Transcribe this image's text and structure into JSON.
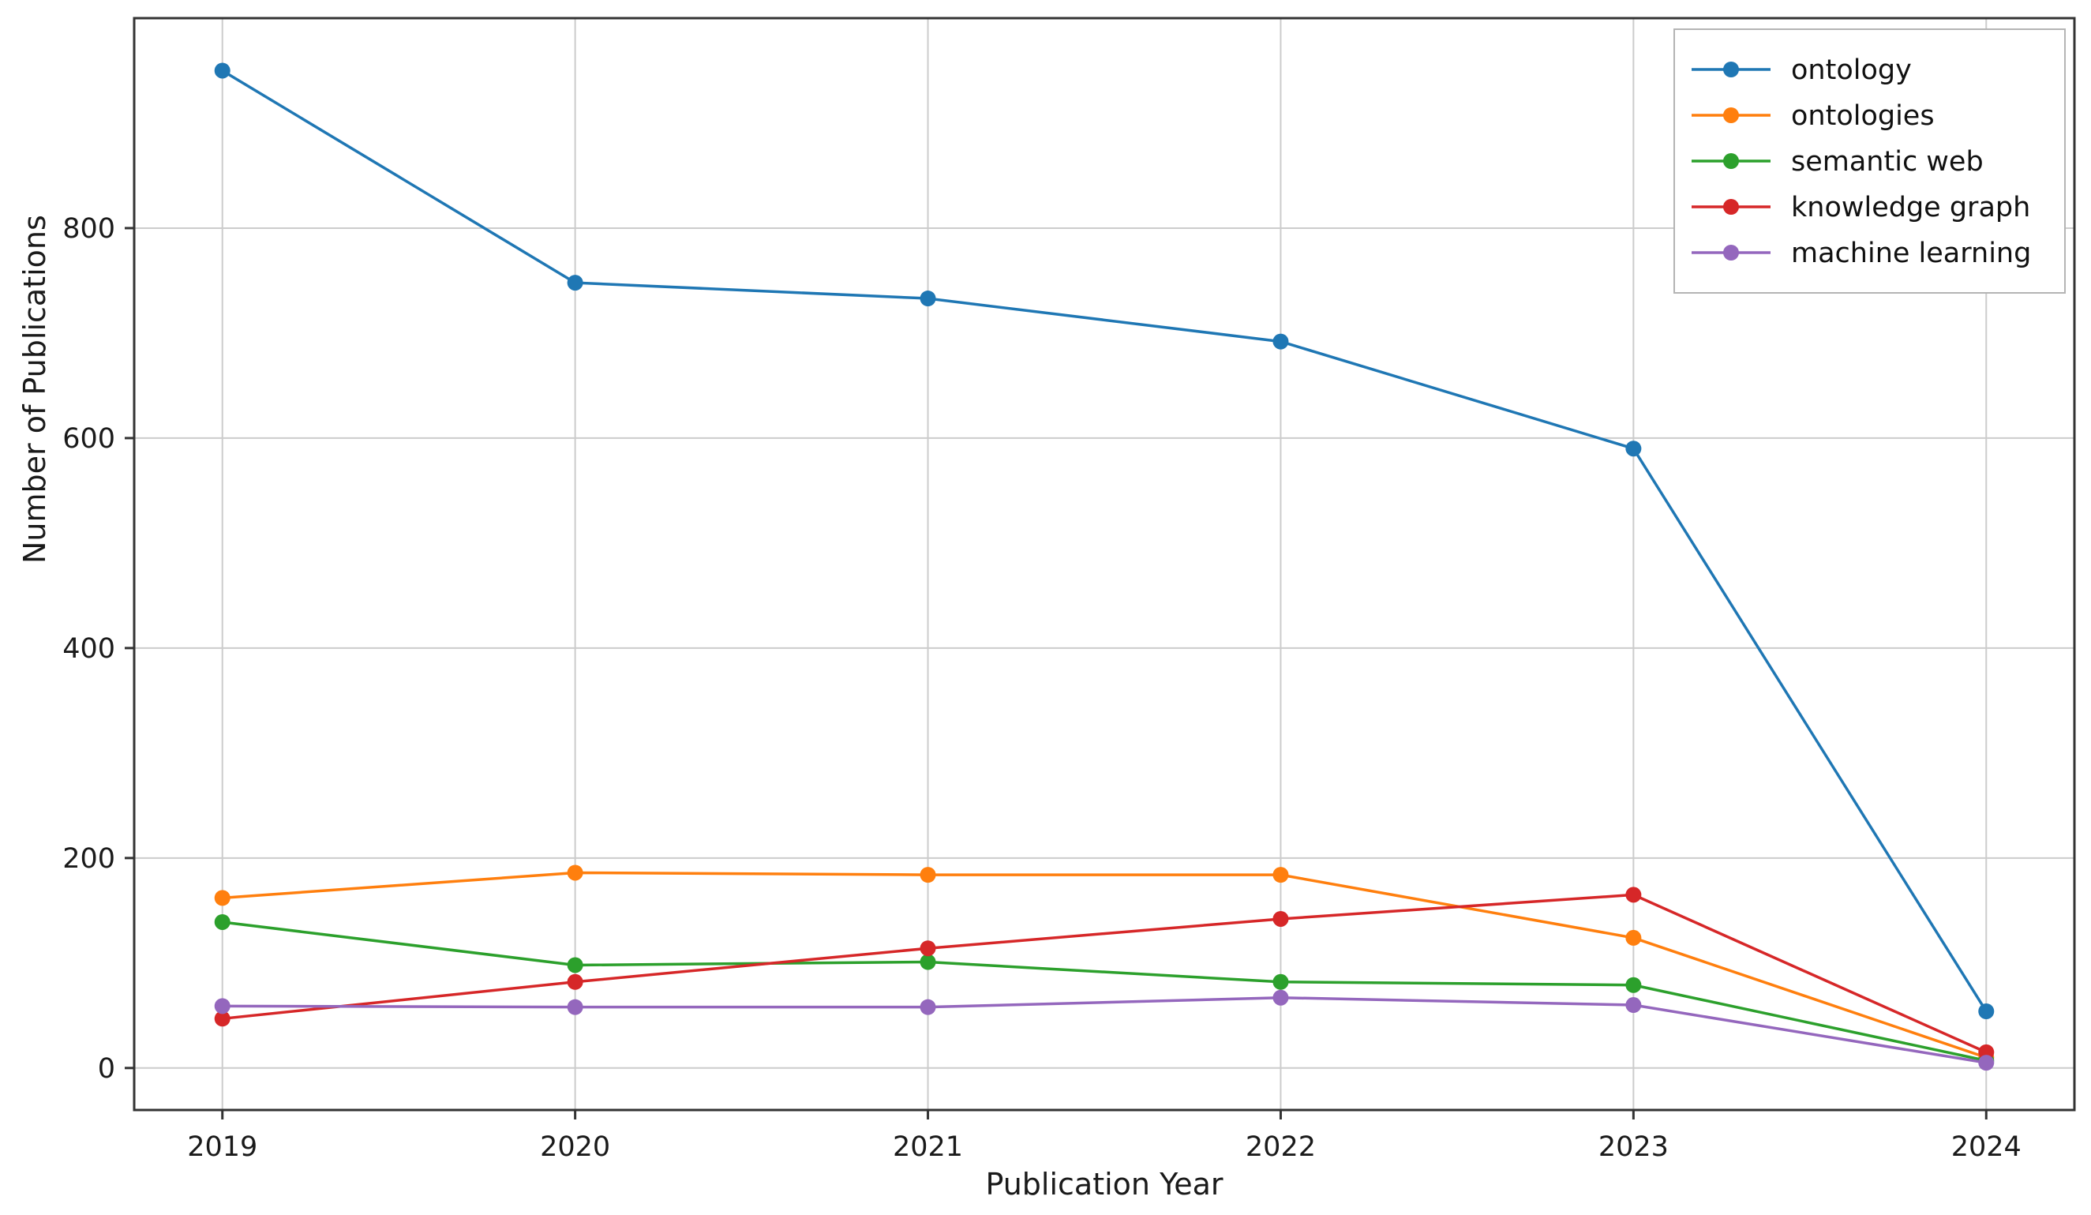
{
  "chart_data": {
    "type": "line",
    "title": "",
    "xlabel": "Publication Year",
    "ylabel": "Number of Publications",
    "x": [
      2019,
      2020,
      2021,
      2022,
      2023,
      2024
    ],
    "x_tick_labels": [
      "2019",
      "2020",
      "2021",
      "2022",
      "2023",
      "2024"
    ],
    "y_ticks": [
      0,
      200,
      400,
      600,
      800
    ],
    "y_tick_labels": [
      "0",
      "200",
      "400",
      "600",
      "800"
    ],
    "xlim": [
      2018.75,
      2024.25
    ],
    "ylim": [
      -40,
      1000
    ],
    "grid": true,
    "legend_position": "upper right",
    "marker": "circle",
    "series": [
      {
        "name": "ontology",
        "color": "#1f77b4",
        "values": [
          950,
          748,
          733,
          692,
          590,
          54
        ]
      },
      {
        "name": "ontologies",
        "color": "#ff7f0e",
        "values": [
          162,
          186,
          184,
          184,
          124,
          10
        ]
      },
      {
        "name": "semantic web",
        "color": "#2ca02c",
        "values": [
          139,
          98,
          101,
          82,
          79,
          7
        ]
      },
      {
        "name": "knowledge graph",
        "color": "#d62728",
        "values": [
          47,
          82,
          114,
          142,
          165,
          15
        ]
      },
      {
        "name": "machine learning",
        "color": "#9467bd",
        "values": [
          59,
          58,
          58,
          67,
          60,
          5
        ]
      }
    ]
  },
  "colors": {
    "background": "#ffffff",
    "grid": "#cccccc",
    "spine": "#333333",
    "tick": "#333333",
    "legend_border": "#b4b4b4",
    "legend_background": "#ffffff"
  }
}
